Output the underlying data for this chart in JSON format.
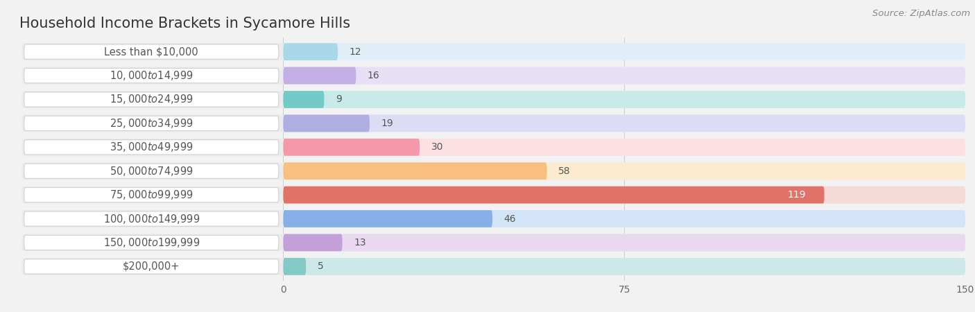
{
  "title": "Household Income Brackets in Sycamore Hills",
  "source": "Source: ZipAtlas.com",
  "categories": [
    "Less than $10,000",
    "$10,000 to $14,999",
    "$15,000 to $24,999",
    "$25,000 to $34,999",
    "$35,000 to $49,999",
    "$50,000 to $74,999",
    "$75,000 to $99,999",
    "$100,000 to $149,999",
    "$150,000 to $199,999",
    "$200,000+"
  ],
  "values": [
    12,
    16,
    9,
    19,
    30,
    58,
    119,
    46,
    13,
    5
  ],
  "bar_colors": [
    "#a8d8ea",
    "#c3aee6",
    "#74cac6",
    "#aeaee0",
    "#f498aa",
    "#f8c080",
    "#e07268",
    "#88b0e8",
    "#c4a0d8",
    "#84cac4"
  ],
  "bar_bg_colors": [
    "#e0eef8",
    "#e6dff5",
    "#c8eae8",
    "#dcdcf4",
    "#fce0e4",
    "#fdebd0",
    "#f5dbd8",
    "#d4e4f8",
    "#ead8f0",
    "#cce8e8"
  ],
  "xlim_data": [
    0,
    150
  ],
  "xticks": [
    0,
    75,
    150
  ],
  "bg_color": "#f2f2f2",
  "row_bg_color": "#ebebeb",
  "title_fontsize": 15,
  "label_fontsize": 10.5,
  "value_fontsize": 10,
  "source_fontsize": 9.5,
  "max_val": 119
}
